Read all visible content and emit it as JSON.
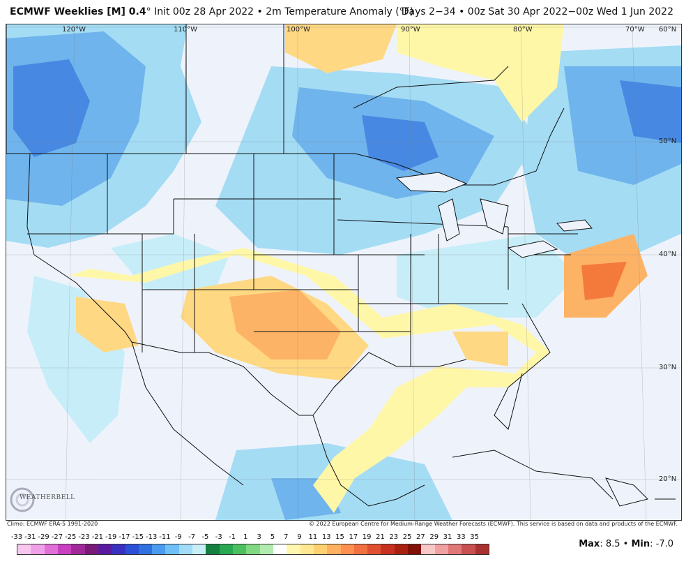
{
  "header": {
    "title_bold": "ECMWF Weeklies [M] 0.4",
    "title_rest": "° Init 00z 28 Apr 2022 • 2m Temperature Anomaly (°F)",
    "valid_range": "Days 2−34 • 00z Sat 30 Apr 2022−00z Wed 1 Jun 2022"
  },
  "lon_labels": [
    "120°W",
    "110°W",
    "100°W",
    "90°W",
    "80°W",
    "70°W"
  ],
  "lat_labels": [
    "60°N",
    "50°N",
    "40°N",
    "30°N",
    "20°N"
  ],
  "footer": {
    "climo": "Climo: ECMWF ERA-5 1991-2020",
    "copyright": "© 2022 European Centre for Medium-Range Weather Forecasts (ECMWF). This service is based on data and products of the ECMWF.",
    "max_label": "Max",
    "max_value": "8.5",
    "min_label": "Min",
    "min_value": "-7.0"
  },
  "logo": {
    "text": "WEATHERBELL"
  },
  "colorbar": {
    "labels": [
      "-33",
      "-31",
      "-29",
      "-27",
      "-25",
      "-23",
      "-21",
      "-19",
      "-17",
      "-15",
      "-13",
      "-11",
      "-9",
      "-7",
      "-5",
      "-3",
      "-1",
      "1",
      "3",
      "5",
      "7",
      "9",
      "11",
      "13",
      "15",
      "17",
      "19",
      "21",
      "23",
      "25",
      "27",
      "29",
      "31",
      "33",
      "35"
    ],
    "colors": [
      "#f7c7f0",
      "#f0a0e8",
      "#e070d8",
      "#c840c0",
      "#a02898",
      "#7a1a78",
      "#5a1aa0",
      "#3a30c0",
      "#2a50d8",
      "#3070e0",
      "#4a9af0",
      "#70c0f8",
      "#a0dcf8",
      "#c8eef8",
      "#148040",
      "#28a850",
      "#4cc060",
      "#80d880",
      "#b0ecb0",
      "#ffffff",
      "#fff7b0",
      "#ffe890",
      "#ffd070",
      "#ffb060",
      "#ff9050",
      "#f07040",
      "#e05030",
      "#c83020",
      "#a82010",
      "#801008",
      "#f8c8c8",
      "#f0a0a0",
      "#e07878",
      "#c85050",
      "#a83030"
    ]
  },
  "colors": {
    "warm_light": "#fff7a8",
    "warm_mid": "#ffd884",
    "warm_strong": "#fdb366",
    "warm_hot": "#f47a3c",
    "cool_light": "#c7eef8",
    "cool_mid": "#a4dcf4",
    "cool_strong": "#6fb4ec",
    "cool_deep": "#3d7ee0",
    "neutral": "#eef3fb"
  }
}
